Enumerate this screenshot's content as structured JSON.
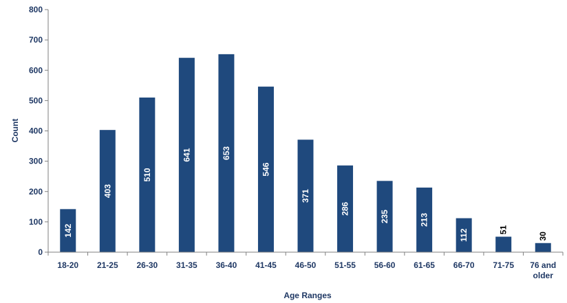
{
  "chart_data": {
    "type": "bar",
    "categories": [
      "18-20",
      "21-25",
      "26-30",
      "31-35",
      "36-40",
      "41-45",
      "46-50",
      "51-55",
      "56-60",
      "61-65",
      "66-70",
      "71-75",
      "76 and older"
    ],
    "category_lines": [
      [
        "18-20"
      ],
      [
        "21-25"
      ],
      [
        "26-30"
      ],
      [
        "31-35"
      ],
      [
        "36-40"
      ],
      [
        "41-45"
      ],
      [
        "46-50"
      ],
      [
        "51-55"
      ],
      [
        "56-60"
      ],
      [
        "61-65"
      ],
      [
        "66-70"
      ],
      [
        "71-75"
      ],
      [
        "76 and",
        "older"
      ]
    ],
    "values": [
      142,
      403,
      510,
      641,
      653,
      546,
      371,
      286,
      235,
      213,
      112,
      51,
      30
    ],
    "data_labels": [
      "142",
      "403",
      "510",
      "641",
      "653",
      "546",
      "371",
      "286",
      "235",
      "213",
      "112",
      "51",
      "30"
    ],
    "title": "",
    "xlabel": "Age Ranges",
    "ylabel": "Count",
    "ylim": [
      0,
      800
    ],
    "yticks": [
      0,
      100,
      200,
      300,
      400,
      500,
      600,
      700,
      800
    ],
    "ytick_labels": [
      "0",
      "100",
      "200",
      "300",
      "400",
      "500",
      "600",
      "700",
      "800"
    ],
    "grid": false,
    "legend": "none",
    "bar_color": "#1f497d",
    "text_color": "#1f3864"
  }
}
